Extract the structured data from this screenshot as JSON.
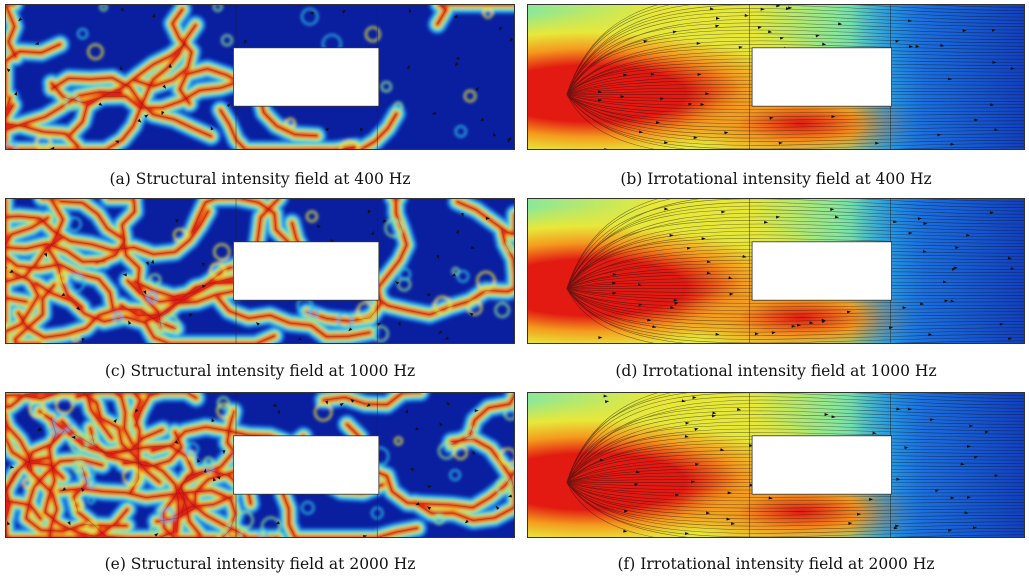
{
  "figure": {
    "panels": [
      {
        "id": "a",
        "kind": "structural",
        "caption": "(a) Structural intensity field at 400 Hz"
      },
      {
        "id": "b",
        "kind": "irrotational",
        "caption": "(b) Irrotational intensity field at 400 Hz"
      },
      {
        "id": "c",
        "kind": "structural",
        "caption": "(c) Structural intensity field at 1000 Hz"
      },
      {
        "id": "d",
        "kind": "irrotational",
        "caption": "(d) Irrotational intensity field at 1000 Hz"
      },
      {
        "id": "e",
        "kind": "structural",
        "caption": "(e) Structural intensity field at 2000 Hz"
      },
      {
        "id": "f",
        "kind": "irrotational",
        "caption": "(f) Irrotational intensity field at 2000 Hz"
      }
    ],
    "colormap": [
      "#0a1ea0",
      "#1a6ee0",
      "#2ec0e8",
      "#8ae89a",
      "#e8e83a",
      "#f49a1e",
      "#e21a12"
    ]
  }
}
